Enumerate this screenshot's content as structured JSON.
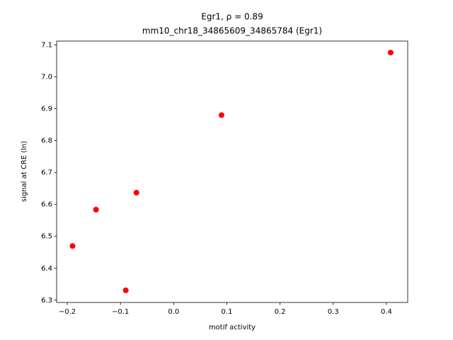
{
  "chart_data": {
    "type": "scatter",
    "title": "Egr1, ρ = 0.89",
    "subtitle": "mm10_chr18_34865609_34865784 (Egr1)",
    "x_label": "motif activity",
    "y_label": "signal at CRE (ln)",
    "x": [
      0.408,
      0.09,
      -0.07,
      -0.146,
      -0.19,
      -0.09
    ],
    "values": [
      7.076,
      6.88,
      6.637,
      6.584,
      6.47,
      6.331
    ],
    "color": "#ff0000",
    "xlim": [
      -0.22,
      0.44
    ],
    "ylim": [
      6.293,
      7.112
    ],
    "xticks": [
      {
        "value": -0.2,
        "label": "−0.2"
      },
      {
        "value": -0.1,
        "label": "−0.1"
      },
      {
        "value": 0.0,
        "label": "0.0"
      },
      0.1,
      0.2,
      0.3,
      0.4
    ],
    "yticks": [
      6.3,
      6.4,
      6.5,
      6.6,
      6.7,
      6.8,
      6.9,
      {
        "value": 7.0,
        "label": "7.0"
      },
      7.1
    ],
    "grid": false
  }
}
